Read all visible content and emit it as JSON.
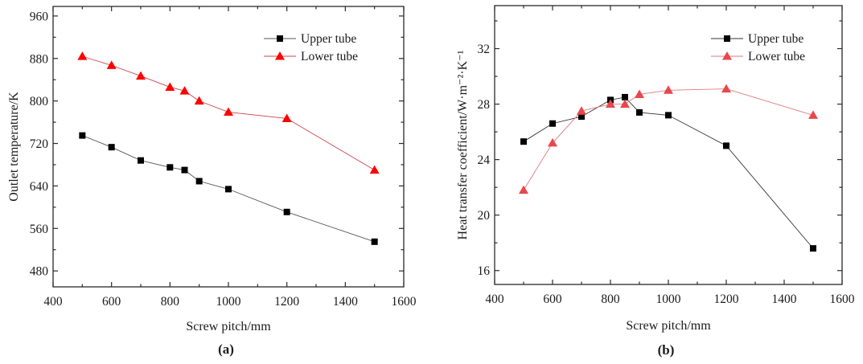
{
  "chart_data": [
    {
      "id": "a",
      "type": "line",
      "panel_label": "(a)",
      "title": "",
      "xlabel": "Screw pitch/mm",
      "ylabel": "Outlet temperature/K",
      "xlim": [
        400,
        1600
      ],
      "ylim": [
        450,
        978
      ],
      "xticks": [
        400,
        600,
        800,
        1000,
        1200,
        1400,
        1600
      ],
      "xticks_minor": [
        500,
        700,
        900,
        1100,
        1300,
        1500
      ],
      "yticks": [
        480,
        560,
        640,
        720,
        800,
        880,
        960
      ],
      "yticks_minor": [
        520,
        600,
        680,
        760,
        840,
        920
      ],
      "grid": false,
      "legend_position": "top-right",
      "x": [
        500,
        600,
        700,
        800,
        850,
        900,
        1000,
        1200,
        1500
      ],
      "series": [
        {
          "name": "Upper tube",
          "marker": "square",
          "color": "#000000",
          "line_color": "#555555",
          "values": [
            735,
            713,
            688,
            675,
            670,
            649,
            634,
            591,
            535
          ]
        },
        {
          "name": "Lower tube",
          "marker": "triangle",
          "color": "#ff0000",
          "line_color": "#c8444a",
          "values": [
            884,
            867,
            847,
            826,
            819,
            800,
            779,
            767,
            670
          ]
        }
      ]
    },
    {
      "id": "b",
      "type": "line",
      "panel_label": "(b)",
      "title": "",
      "xlabel": "Screw pitch/mm",
      "ylabel": "Heat transfer coefficient/W·m⁻²·K⁻¹",
      "xlim": [
        400,
        1600
      ],
      "ylim": [
        15,
        35.1
      ],
      "xticks": [
        400,
        600,
        800,
        1000,
        1200,
        1400,
        1600
      ],
      "xticks_minor": [
        500,
        700,
        900,
        1100,
        1300,
        1500
      ],
      "yticks": [
        16,
        20,
        24,
        28,
        32
      ],
      "yticks_minor": [
        18,
        22,
        26,
        30,
        34
      ],
      "grid": false,
      "legend_position": "top-right",
      "x": [
        500,
        600,
        700,
        800,
        850,
        900,
        1000,
        1200,
        1500
      ],
      "series": [
        {
          "name": "Upper tube",
          "marker": "square",
          "color": "#000000",
          "line_color": "#333333",
          "values": [
            25.3,
            26.6,
            27.1,
            28.3,
            28.5,
            27.4,
            27.2,
            25.0,
            17.6
          ]
        },
        {
          "name": "Lower tube",
          "marker": "triangle",
          "color": "#e8474c",
          "line_color": "#e07a7e",
          "values": [
            21.8,
            25.2,
            27.5,
            28.0,
            28.0,
            28.7,
            29.0,
            29.1,
            27.2
          ]
        }
      ]
    }
  ]
}
